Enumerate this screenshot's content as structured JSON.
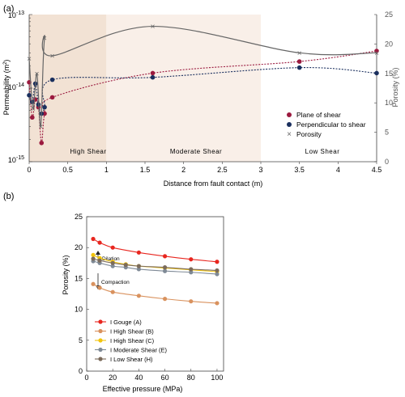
{
  "panel_a": {
    "label": "(a)",
    "y_top_label": "10",
    "y_top_exp": "-13",
    "y_mid_label": "10",
    "y_mid_exp": "-14",
    "y_bot_label": "10",
    "y_bot_exp": "-15",
    "ylabel_main": "Permeability (m",
    "ylabel_sup": "2",
    "ylabel_close": ")",
    "ylabel_right": "Porosity (%)",
    "xlabel": "Distance from fault contact (m)",
    "x_ticks": [
      "0",
      "0.5",
      "1",
      "1.5",
      "2",
      "2.5",
      "3",
      "3.5",
      "4",
      "4.5"
    ],
    "right_ticks": [
      "0",
      "5",
      "10",
      "15",
      "20",
      "25"
    ],
    "zones": {
      "high": "High Shear",
      "moderate": "Moderate Shear",
      "low": "Low Shear",
      "high_color": "#f2e2d4",
      "moderate_color": "#f9efe8"
    },
    "legend": [
      "Plane of shear",
      "Perpendicular to shear",
      "Porosity"
    ]
  },
  "panel_b": {
    "label": "(b)",
    "ylabel": "Porosity (%)",
    "xlabel": "Effective pressure (MPa)",
    "y_ticks": [
      "0",
      "5",
      "10",
      "15",
      "20",
      "25"
    ],
    "x_ticks": [
      "0",
      "20",
      "40",
      "60",
      "80",
      "100"
    ],
    "dilation": "Dilation",
    "compaction": "Compaction",
    "legend": [
      "I  Gouge (A)",
      "I  High Shear (B)",
      "I  High Shear (C)",
      "I  Moderate Shear (E)",
      "I  Low Shear (H)"
    ]
  },
  "chart_data": [
    {
      "type": "line",
      "xlabel": "Distance from fault contact (m)",
      "ylabel": "Permeability (m2)",
      "ylabel_right": "Porosity (%)",
      "xlim": [
        0,
        4.5
      ],
      "ylim": [
        1e-15,
        1e-13
      ],
      "yscale": "log",
      "ylim_right": [
        0,
        25
      ],
      "series": [
        {
          "name": "Plane of shear",
          "color": "#9b1a3f",
          "axis": "left",
          "x": [
            0,
            0.04,
            0.08,
            0.12,
            0.16,
            0.2,
            0.3,
            1.6,
            3.5,
            4.5
          ],
          "y": [
            1.2e-14,
            4e-15,
            7e-15,
            5.5e-15,
            1.8e-15,
            4.5e-15,
            7.5e-15,
            1.6e-14,
            2.3e-14,
            3.2e-14
          ]
        },
        {
          "name": "Perpendicular to shear",
          "color": "#1a2f5e",
          "axis": "left",
          "x": [
            0,
            0.04,
            0.08,
            0.12,
            0.16,
            0.2,
            0.3,
            1.6,
            3.5,
            4.5
          ],
          "y": [
            8e-15,
            6.5e-15,
            1.15e-14,
            6e-15,
            4.5e-15,
            5.5e-15,
            1.3e-14,
            1.4e-14,
            1.9e-14,
            1.6e-14
          ]
        },
        {
          "name": "Porosity",
          "color": "#666666",
          "axis": "right",
          "x": [
            0,
            0.05,
            0.1,
            0.15,
            0.2,
            0.3,
            1.6,
            3.5,
            4.5
          ],
          "y": [
            17.5,
            9,
            15,
            6,
            21,
            18,
            23,
            18.5,
            18.5
          ]
        }
      ]
    },
    {
      "type": "line",
      "xlabel": "Effective pressure (MPa)",
      "ylabel": "Porosity (%)",
      "xlim": [
        0,
        105
      ],
      "ylim": [
        0,
        25
      ],
      "series": [
        {
          "name": "I  Gouge (A)",
          "color": "#e8261f",
          "x": [
            5,
            10,
            20,
            40,
            60,
            80,
            100
          ],
          "y": [
            21.4,
            20.8,
            20.0,
            19.2,
            18.6,
            18.1,
            17.7
          ]
        },
        {
          "name": "I  High Shear (B)",
          "color": "#d9925e",
          "x": [
            5,
            10,
            20,
            40,
            60,
            80,
            100
          ],
          "y": [
            14.1,
            13.5,
            12.8,
            12.2,
            11.7,
            11.3,
            11.0
          ]
        },
        {
          "name": "I  High Shear (C)",
          "color": "#f2c40c",
          "x": [
            5,
            10,
            20,
            30,
            40,
            60,
            80,
            100
          ],
          "y": [
            18.8,
            18.3,
            17.7,
            17.3,
            17.0,
            16.7,
            16.4,
            16.1
          ]
        },
        {
          "name": "I  Moderate Shear (E)",
          "color": "#7f8a96",
          "x": [
            5,
            10,
            20,
            30,
            40,
            60,
            80,
            100
          ],
          "y": [
            17.8,
            17.5,
            17.0,
            16.8,
            16.5,
            16.2,
            16.0,
            15.7
          ]
        },
        {
          "name": "I  Low Shear (H)",
          "color": "#7b6b5b",
          "x": [
            5,
            10,
            20,
            30,
            40,
            60,
            80,
            100
          ],
          "y": [
            18.2,
            17.9,
            17.5,
            17.2,
            17.0,
            16.8,
            16.5,
            16.3
          ]
        }
      ]
    }
  ]
}
